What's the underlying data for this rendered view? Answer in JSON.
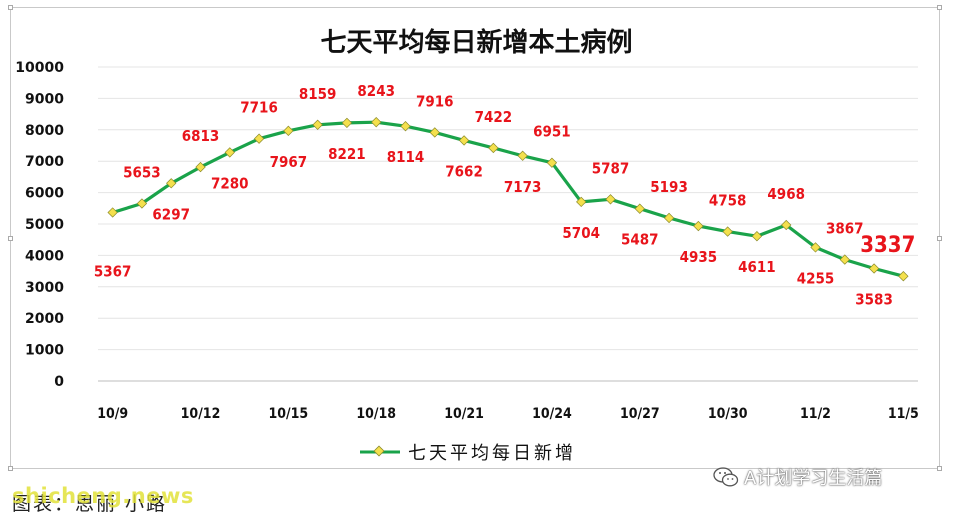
{
  "chart_data": {
    "type": "line",
    "title": "七天平均每日新增本土病例",
    "x": [
      "10/9",
      "10/10",
      "10/11",
      "10/12",
      "10/13",
      "10/14",
      "10/15",
      "10/16",
      "10/17",
      "10/18",
      "10/19",
      "10/20",
      "10/21",
      "10/22",
      "10/23",
      "10/24",
      "10/25",
      "10/26",
      "10/27",
      "10/28",
      "10/29",
      "10/30",
      "10/31",
      "11/1",
      "11/2",
      "11/3",
      "11/4",
      "11/5"
    ],
    "tick_labels": [
      "10/9",
      "10/12",
      "10/15",
      "10/18",
      "10/21",
      "10/24",
      "10/27",
      "10/30",
      "11/2",
      "11/5"
    ],
    "series": [
      {
        "name": "七天平均每日新增",
        "values": [
          5367,
          5653,
          6297,
          6813,
          7280,
          7716,
          7967,
          8159,
          8221,
          8243,
          8114,
          7916,
          7662,
          7422,
          7173,
          6951,
          5704,
          5787,
          5487,
          5193,
          4935,
          4758,
          4611,
          4968,
          4255,
          3867,
          3583,
          3337
        ]
      }
    ],
    "ylim": [
      0,
      10000
    ],
    "yticks": [
      0,
      1000,
      2000,
      3000,
      4000,
      5000,
      6000,
      7000,
      8000,
      9000,
      10000
    ],
    "grid": true,
    "legend_position": "bottom",
    "colors": {
      "line": "#1aa34a",
      "marker": "#f4e04d",
      "label": "#e8141b",
      "grid": "#e4e4e4"
    }
  },
  "footer": {
    "caption": "图表：思丽 小路"
  },
  "watermarks": {
    "site": "shicheng.news",
    "account": "A计划学习生活篇"
  }
}
